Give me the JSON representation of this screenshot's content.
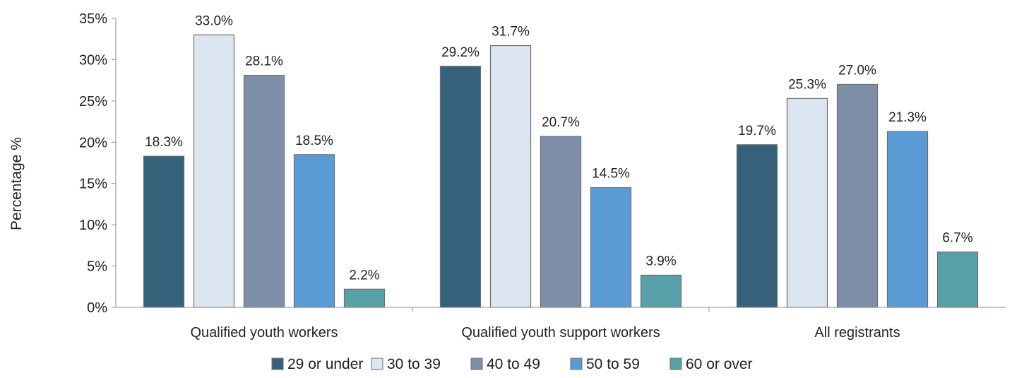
{
  "chart_data": {
    "type": "bar",
    "title": "",
    "xlabel": "",
    "ylabel": "Percentage %",
    "ylim": [
      0,
      35
    ],
    "y_ticks": [
      "0%",
      "5%",
      "10%",
      "15%",
      "20%",
      "25%",
      "30%",
      "35%"
    ],
    "grid": false,
    "legend_position": "bottom",
    "categories": [
      "Qualified youth workers",
      "Qualified youth support workers",
      "All registrants"
    ],
    "series": [
      {
        "name": "29 or under",
        "color": "#35627a",
        "values": [
          18.3,
          29.2,
          19.7
        ],
        "labels": [
          "18.3%",
          "29.2%",
          "19.7%"
        ]
      },
      {
        "name": "30 to 39",
        "color": "#dce6f1",
        "values": [
          33.0,
          31.7,
          25.3
        ],
        "labels": [
          "33.0%",
          "31.7%",
          "25.3%"
        ]
      },
      {
        "name": "40 to 49",
        "color": "#7f8fa8",
        "values": [
          28.1,
          20.7,
          27.0
        ],
        "labels": [
          "28.1%",
          "20.7%",
          "27.0%"
        ]
      },
      {
        "name": "50 to 59",
        "color": "#5b9bd5",
        "values": [
          18.5,
          14.5,
          21.3
        ],
        "labels": [
          "18.5%",
          "14.5%",
          "21.3%"
        ]
      },
      {
        "name": "60 or over",
        "color": "#58a0a8",
        "values": [
          2.2,
          3.9,
          6.7
        ],
        "labels": [
          "2.2%",
          "3.9%",
          "6.7%"
        ]
      }
    ]
  }
}
